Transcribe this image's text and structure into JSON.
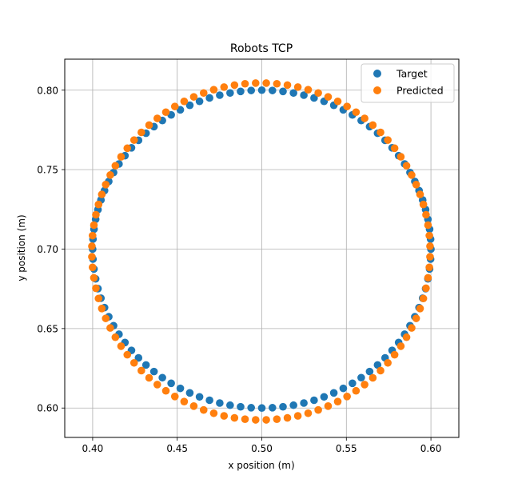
{
  "chart_data": {
    "type": "scatter",
    "title": "Robots TCP",
    "xlabel": "x position (m)",
    "ylabel": "y position (m)",
    "xlim": [
      0.3835,
      0.6165
    ],
    "ylim": [
      0.5815,
      0.8195
    ],
    "xticks": [
      "0.40",
      "0.45",
      "0.50",
      "0.55",
      "0.60"
    ],
    "yticks": [
      "0.60",
      "0.65",
      "0.70",
      "0.75",
      "0.80"
    ],
    "grid": true,
    "legend": "top-right",
    "series": [
      {
        "name": "Target",
        "color": "#1f77b4",
        "shape": "circle",
        "center": [
          0.5,
          0.7
        ],
        "radius_x": 0.1,
        "radius_y": 0.1,
        "count": 100
      },
      {
        "name": "Predicted",
        "color": "#ff7f0e",
        "shape": "circle",
        "center": [
          0.4995,
          0.6985
        ],
        "radius_x": 0.1,
        "radius_y": 0.106,
        "count": 100,
        "phase_offset_deg": 1.8
      }
    ]
  }
}
